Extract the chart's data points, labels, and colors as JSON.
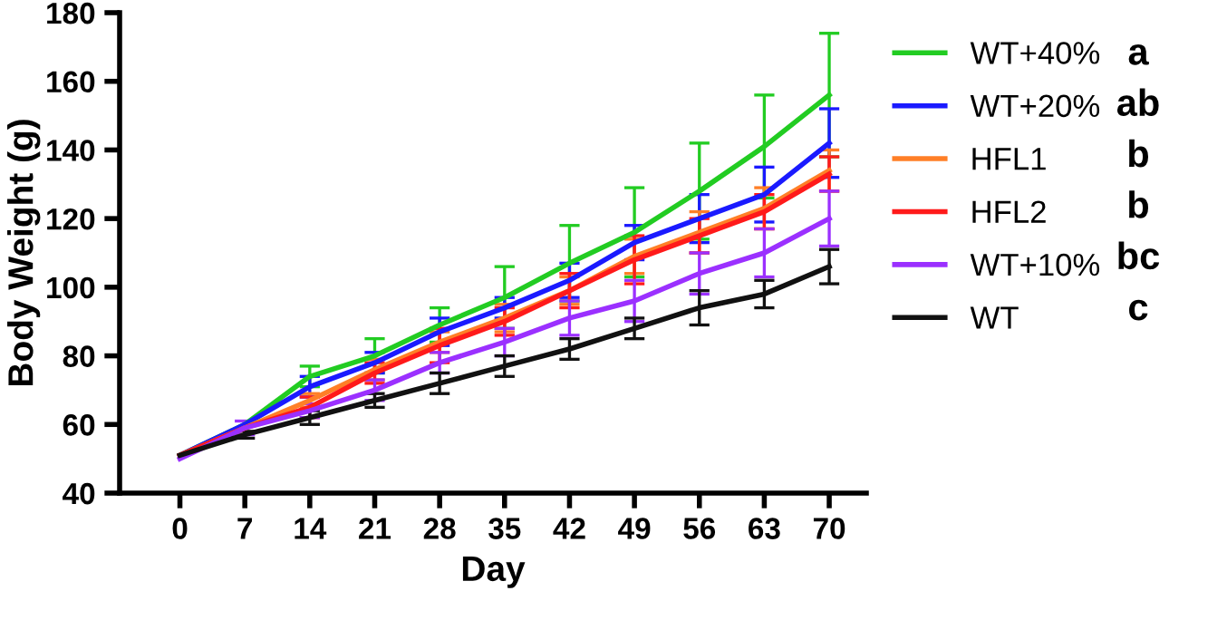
{
  "chart_data": {
    "type": "line",
    "xlabel": "Day",
    "ylabel": "Body Weight (g)",
    "x": [
      0,
      7,
      14,
      21,
      28,
      35,
      42,
      49,
      56,
      63,
      70
    ],
    "xlim": [
      -6.5,
      74
    ],
    "xticks": [
      0,
      7,
      14,
      21,
      28,
      35,
      42,
      49,
      56,
      63,
      70
    ],
    "ylim": [
      40,
      180
    ],
    "yticks": [
      40,
      60,
      80,
      100,
      120,
      140,
      160,
      180
    ],
    "grid": false,
    "legend": "right",
    "marker": "none",
    "line_style": "solid",
    "annotations": [
      "a",
      "ab",
      "b",
      "b",
      "bc",
      "c"
    ],
    "series": [
      {
        "name": "WT+40%",
        "color": "#22cc22",
        "values": [
          51,
          60,
          74,
          80,
          89,
          97,
          107,
          116,
          128,
          141,
          156
        ],
        "errors": [
          null,
          null,
          3,
          5,
          5,
          9,
          11,
          13,
          14,
          15,
          18
        ]
      },
      {
        "name": "WT+20%",
        "color": "#1a1aff",
        "values": [
          51,
          60,
          71,
          78,
          87,
          94,
          102,
          113,
          120,
          127,
          142
        ],
        "errors": [
          null,
          null,
          3,
          3,
          4,
          3,
          5,
          5,
          7,
          8,
          10
        ]
      },
      {
        "name": "HFL1",
        "color": "#ff7f27",
        "values": [
          51,
          59,
          67,
          76,
          84,
          91,
          99,
          109,
          116,
          123,
          134
        ],
        "errors": [
          null,
          null,
          2,
          3,
          3,
          4,
          4,
          5,
          6,
          6,
          6
        ]
      },
      {
        "name": "HFL2",
        "color": "#ff1a1a",
        "values": [
          51,
          59,
          65,
          75,
          83,
          90,
          99,
          108,
          115,
          122,
          133
        ],
        "errors": [
          null,
          null,
          3,
          3,
          5,
          4,
          5,
          7,
          5,
          5,
          5
        ]
      },
      {
        "name": "WT+10%",
        "color": "#9b30ff",
        "values": [
          50,
          59,
          64,
          70,
          78,
          84,
          91,
          96,
          104,
          110,
          120
        ],
        "errors": [
          null,
          2,
          2,
          3,
          3,
          4,
          5,
          6,
          6,
          7,
          8
        ]
      },
      {
        "name": "WT",
        "color": "#111111",
        "values": [
          51,
          57,
          62,
          67,
          72,
          77,
          82,
          88,
          94,
          98,
          106
        ],
        "errors": [
          null,
          1,
          2,
          2,
          3,
          3,
          3,
          3,
          5,
          4,
          5
        ]
      }
    ]
  }
}
